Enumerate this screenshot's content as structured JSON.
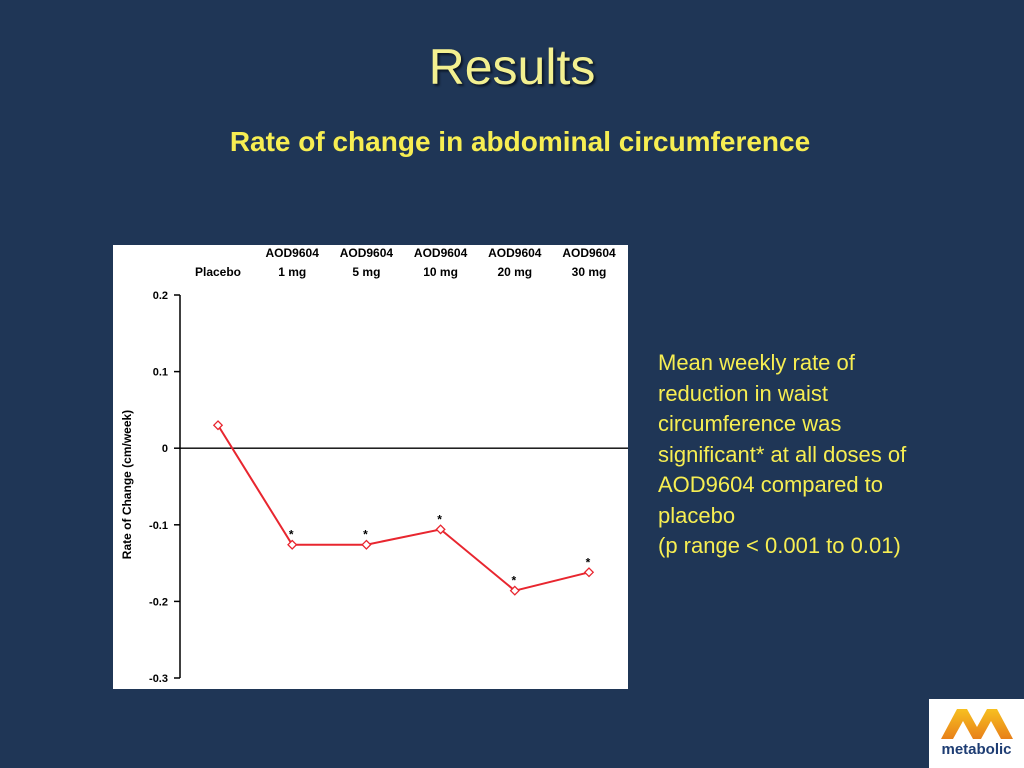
{
  "slide": {
    "title": "Results",
    "subtitle": "Rate of change in abdominal circumference",
    "note_lines": [
      "Mean weekly rate of",
      "reduction in waist",
      "circumference was",
      "significant* at all doses of",
      "AOD9604 compared to",
      "placebo",
      "(p range < 0.001 to 0.01)"
    ],
    "logo_text": "metabolic"
  },
  "chart_data": {
    "type": "line",
    "title": "",
    "xlabel": "",
    "ylabel": "Rate of Change (cm/week)",
    "categories": [
      [
        "Placebo"
      ],
      [
        "AOD9604",
        "1 mg"
      ],
      [
        "AOD9604",
        "5 mg"
      ],
      [
        "AOD9604",
        "10 mg"
      ],
      [
        "AOD9604",
        "20 mg"
      ],
      [
        "AOD9604",
        "30 mg"
      ]
    ],
    "series": [
      {
        "values": [
          0.03,
          -0.126,
          -0.126,
          -0.106,
          -0.186,
          -0.162
        ],
        "color": "#e8262f"
      }
    ],
    "significance": [
      "",
      "*",
      "*",
      "*",
      "*",
      "*"
    ],
    "ylim": [
      -0.3,
      0.2
    ],
    "yticks": [
      0.2,
      0.1,
      0,
      -0.1,
      -0.2,
      -0.3
    ],
    "ytick_labels": [
      "0.2",
      "0.1",
      "0",
      "-0.1",
      "-0.2",
      "-0.3"
    ],
    "zero_line": true,
    "grid": false,
    "marker": "diamond-open"
  },
  "colors": {
    "background": "#1f3656",
    "title": "#f3f090",
    "accent_text": "#f7ee52",
    "series_line": "#e8262f",
    "logo_blue": "#1e3d73",
    "logo_orange": "#f0a020"
  }
}
